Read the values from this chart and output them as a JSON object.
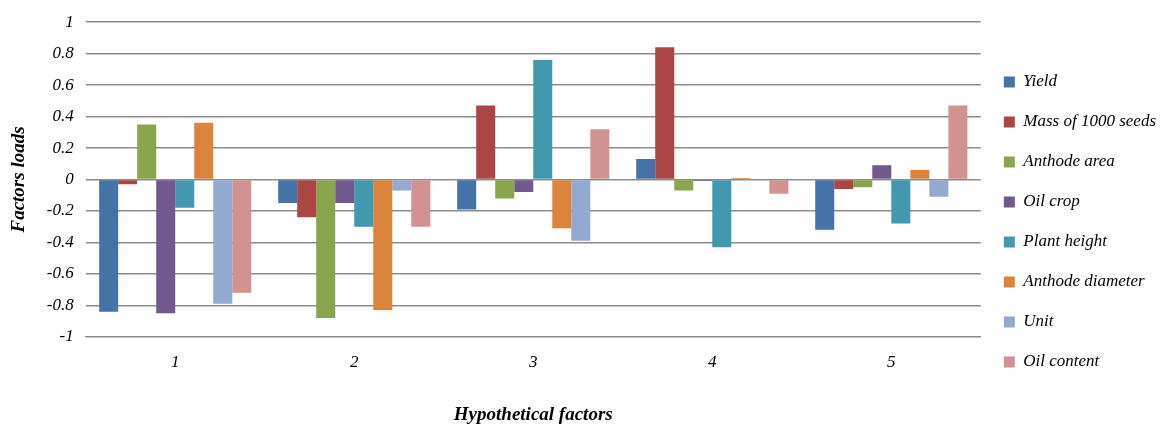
{
  "chart_data": {
    "type": "bar",
    "xlabel": "Hypothetical factors",
    "ylabel": "Factors loads",
    "categories": [
      "1",
      "2",
      "3",
      "4",
      "5"
    ],
    "series": [
      {
        "name": "Yield",
        "color": "#4572a7",
        "values": [
          -0.84,
          -0.15,
          -0.19,
          0.13,
          -0.32
        ]
      },
      {
        "name": "Mass of 1000 seeds",
        "color": "#aa4643",
        "values": [
          -0.03,
          -0.24,
          0.47,
          0.84,
          -0.06
        ]
      },
      {
        "name": "Anthode area",
        "color": "#89a54e",
        "values": [
          0.35,
          -0.88,
          -0.12,
          -0.07,
          -0.05
        ]
      },
      {
        "name": "Oil crop",
        "color": "#71588f",
        "values": [
          -0.85,
          -0.15,
          -0.08,
          -0.01,
          0.09
        ]
      },
      {
        "name": "Plant height",
        "color": "#4198af",
        "values": [
          -0.18,
          -0.3,
          0.76,
          -0.43,
          -0.28
        ]
      },
      {
        "name": "Anthode diameter",
        "color": "#db843d",
        "values": [
          0.36,
          -0.83,
          -0.31,
          0.01,
          0.06
        ]
      },
      {
        "name": "Unit",
        "color": "#93a9cf",
        "values": [
          -0.79,
          -0.07,
          -0.39,
          0,
          -0.11
        ]
      },
      {
        "name": "Oil content",
        "color": "#d19392",
        "values": [
          -0.72,
          -0.3,
          0.32,
          -0.09,
          0.47
        ]
      }
    ],
    "ylim": [
      -1,
      1
    ],
    "yticks": [
      -1,
      -0.8,
      -0.6,
      -0.4,
      -0.2,
      0,
      0.2,
      0.4,
      0.6,
      0.8,
      1
    ],
    "grid": "y",
    "legend": "right"
  }
}
